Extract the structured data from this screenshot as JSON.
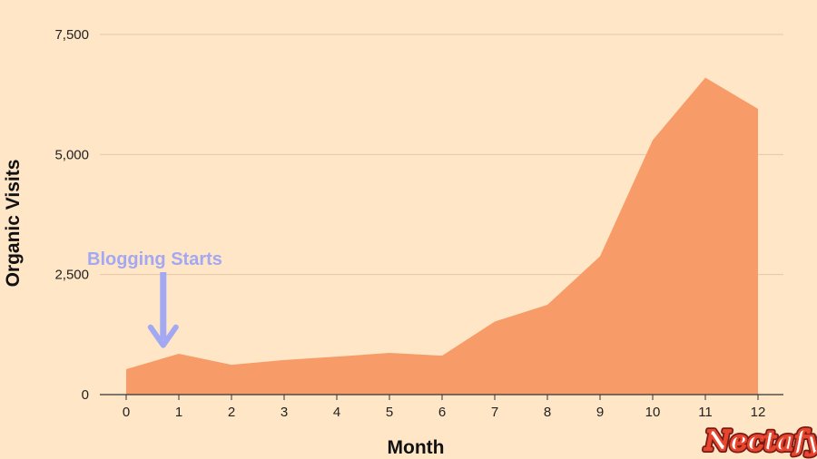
{
  "chart_data": {
    "type": "area",
    "x": [
      0,
      1,
      2,
      3,
      4,
      5,
      6,
      7,
      8,
      9,
      10,
      11,
      12
    ],
    "series": [
      {
        "values": [
          530,
          850,
          620,
          720,
          790,
          870,
          810,
          1520,
          1870,
          2880,
          5300,
          6600,
          5950
        ]
      }
    ],
    "xlabel": "Month",
    "ylabel": "Organic Visits",
    "xticks": [
      "0",
      "1",
      "2",
      "3",
      "4",
      "5",
      "6",
      "7",
      "8",
      "9",
      "10",
      "11",
      "12"
    ],
    "yticks": [
      "0",
      "2,500",
      "5,000",
      "7,500"
    ],
    "ytick_values": [
      0,
      2500,
      5000,
      7500
    ],
    "ylim": [
      0,
      7500
    ],
    "xlim": [
      0,
      12
    ],
    "grid": true,
    "annotations": [
      {
        "text": "Blogging Starts",
        "x": 0.6,
        "y": 800,
        "arrow": "down"
      }
    ],
    "colors": {
      "background": "#FFE6C6",
      "area": "#F79B68",
      "annotation": "#A3A8F2",
      "grid": "#E2C8A6"
    }
  },
  "brand": {
    "logo": "Nectafy"
  }
}
